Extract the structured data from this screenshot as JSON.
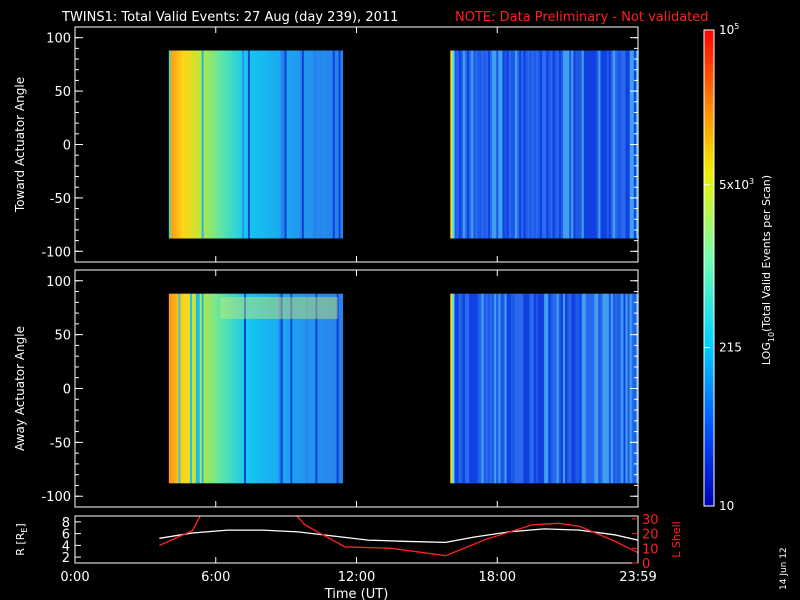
{
  "header": {
    "title": "TWINS1: Total Valid Events: 27 Aug (day 239), 2011",
    "note": "NOTE: Data Preliminary - Not validated",
    "note_color": "#ff2020"
  },
  "side_date": "14 Jun 12",
  "colorbar": {
    "label_main": "LOG",
    "label_sub": "10",
    "label_rest": "(Total Valid Events per Scan)",
    "ticks": [
      {
        "value": 10,
        "label": "10"
      },
      {
        "value": 215,
        "label": "215"
      },
      {
        "value": 5000,
        "label_base": "5x10",
        "label_exp": "3"
      },
      {
        "value": 100000,
        "label_base": "10",
        "label_exp": "5"
      }
    ],
    "min": 10,
    "max": 100000,
    "scale": "log",
    "colors": [
      "#0000b0",
      "#0050ff",
      "#00d0ff",
      "#70ffb0",
      "#f0f000",
      "#ff8000",
      "#ff0000"
    ]
  },
  "chart_data": [
    {
      "type": "heatmap",
      "ylabel": "Toward Actuator Angle",
      "ylim": [
        -110,
        110
      ],
      "yticks": [
        100,
        50,
        0,
        -50,
        -100
      ],
      "xlim": [
        0,
        24
      ],
      "blocks": [
        {
          "x": [
            4.0,
            11.4
          ],
          "y": [
            -88,
            88
          ],
          "scheme": "warm-to-cyan"
        },
        {
          "x": [
            16.0,
            24.0
          ],
          "y": [
            -88,
            88
          ],
          "scheme": "blue"
        }
      ]
    },
    {
      "type": "heatmap",
      "ylabel": "Away Actuator Angle",
      "ylim": [
        -110,
        110
      ],
      "yticks": [
        100,
        50,
        0,
        -50,
        -100
      ],
      "xlim": [
        0,
        24
      ],
      "blocks": [
        {
          "x": [
            4.0,
            11.4
          ],
          "y": [
            -88,
            88
          ],
          "scheme": "warm-to-cyan"
        },
        {
          "x": [
            16.0,
            24.0
          ],
          "y": [
            -88,
            88
          ],
          "scheme": "blue"
        }
      ]
    },
    {
      "type": "line",
      "ylabel_left": "R [R",
      "ylabel_left_sub": "E",
      "ylabel_left_end": "]",
      "ylabel_right": "L Shell",
      "ylim_left": [
        1,
        9
      ],
      "yticks_left": [
        2,
        4,
        6,
        8
      ],
      "ylim_right": [
        0,
        32
      ],
      "yticks_right": [
        0,
        10,
        20,
        30
      ],
      "xlim": [
        0,
        24
      ],
      "xticks": [
        0,
        6,
        12,
        18,
        24
      ],
      "xtick_labels": [
        "0:00",
        "6:00",
        "12:00",
        "18:00",
        "23:59"
      ],
      "xlabel": "Time (UT)",
      "series": [
        {
          "color": "#ffffff",
          "axis": "left",
          "x": [
            3.6,
            5.0,
            6.5,
            8.0,
            9.5,
            11.0,
            12.5,
            14.0,
            15.8,
            17.0,
            18.5,
            20.0,
            21.5,
            23.0,
            24.0
          ],
          "y": [
            5.2,
            6.1,
            6.6,
            6.6,
            6.3,
            5.6,
            4.9,
            4.7,
            4.5,
            5.4,
            6.3,
            6.8,
            6.6,
            5.8,
            4.9
          ]
        },
        {
          "color": "#ff2020",
          "axis": "right",
          "x": [
            3.6,
            5.0,
            5.6,
            9.0,
            9.8,
            11.5,
            13.5,
            15.8,
            17.5,
            19.5,
            20.6,
            21.5,
            23.0,
            24.0
          ],
          "y": [
            12,
            22,
            40,
            40,
            26,
            11,
            10,
            5,
            16,
            26,
            27,
            25,
            15,
            7
          ]
        }
      ]
    }
  ]
}
